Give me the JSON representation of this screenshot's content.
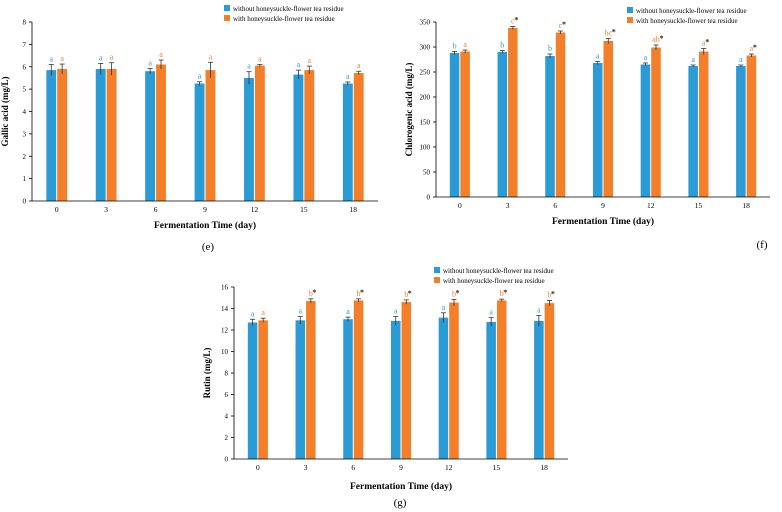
{
  "colors": {
    "without": "#2b9bd6",
    "with": "#f47f2a",
    "axis": "#000000",
    "error": "#333333",
    "star": "#2a2a2a"
  },
  "chart_data": [
    {
      "type": "bar",
      "panel_label": "(e)",
      "ylabel": "Gallic acid (mg/L)",
      "xlabel": "Fermentation Time (day)",
      "categories": [
        "0",
        "3",
        "6",
        "9",
        "12",
        "15",
        "18"
      ],
      "ylim": [
        0,
        8
      ],
      "yticks": [
        "0",
        "1",
        "2",
        "3",
        "4",
        "5",
        "6",
        "7",
        "8"
      ],
      "legend": [
        "without honeysuckle-flower tea residue",
        "with honeysuckle-flower tea residue"
      ],
      "series": [
        {
          "name": "without honeysuckle-flower tea residue",
          "values": [
            5.85,
            5.9,
            5.8,
            5.25,
            5.5,
            5.65,
            5.25
          ],
          "errors": [
            0.25,
            0.25,
            0.12,
            0.08,
            0.28,
            0.2,
            0.07
          ],
          "labels": [
            "a",
            "a",
            "a",
            "a",
            "a",
            "a",
            "a"
          ],
          "stars": [
            false,
            false,
            false,
            false,
            false,
            false,
            false
          ]
        },
        {
          "name": "with honeysuckle-flower tea residue",
          "values": [
            5.9,
            5.9,
            6.1,
            5.85,
            6.05,
            5.85,
            5.72
          ],
          "errors": [
            0.22,
            0.28,
            0.2,
            0.35,
            0.05,
            0.18,
            0.08
          ],
          "labels": [
            "a",
            "a",
            "a",
            "a",
            "a",
            "a",
            "a"
          ],
          "stars": [
            false,
            false,
            false,
            false,
            false,
            false,
            false
          ]
        }
      ]
    },
    {
      "type": "bar",
      "panel_label": "(f)",
      "ylabel": "Chlorogenic acid (mg/L)",
      "xlabel": "Fermentation Time (day)",
      "categories": [
        "0",
        "3",
        "6",
        "9",
        "12",
        "15",
        "18"
      ],
      "ylim": [
        0,
        350
      ],
      "yticks": [
        "0",
        "50",
        "100",
        "150",
        "200",
        "250",
        "300",
        "350"
      ],
      "legend": [
        "without honeysuckle-flower tea residue",
        "with honeysuckle-flower tea residue"
      ],
      "series": [
        {
          "name": "without honeysuckle-flower tea residue",
          "values": [
            288,
            290,
            282,
            268,
            265,
            262,
            262
          ],
          "errors": [
            3,
            3,
            4,
            3,
            3,
            2,
            2
          ],
          "labels": [
            "b",
            "b",
            "b",
            "a",
            "a",
            "a",
            "a"
          ],
          "stars": [
            false,
            false,
            false,
            false,
            false,
            false,
            false
          ]
        },
        {
          "name": "with honeysuckle-flower tea residue",
          "values": [
            291,
            338,
            329,
            312,
            299,
            291,
            283
          ],
          "errors": [
            3,
            3,
            3,
            5,
            5,
            6,
            3
          ],
          "labels": [
            "a",
            "c",
            "c",
            "bc",
            "ab",
            "a",
            "a"
          ],
          "stars": [
            false,
            true,
            true,
            true,
            true,
            true,
            true
          ]
        }
      ]
    },
    {
      "type": "bar",
      "panel_label": "(g)",
      "ylabel": "Rutin (mg/L)",
      "xlabel": "Fermentation Time (day)",
      "categories": [
        "0",
        "3",
        "6",
        "9",
        "12",
        "15",
        "18"
      ],
      "ylim": [
        0,
        16
      ],
      "yticks": [
        "0",
        "2",
        "4",
        "6",
        "8",
        "10",
        "12",
        "14",
        "16"
      ],
      "legend": [
        "without honeysuckle-flower tea residue",
        "with honeysuckle-flower tea residue"
      ],
      "series": [
        {
          "name": "without honeysuckle-flower tea residue",
          "values": [
            12.7,
            12.9,
            13.0,
            12.85,
            13.15,
            12.75,
            12.85
          ],
          "errors": [
            0.3,
            0.35,
            0.2,
            0.4,
            0.45,
            0.4,
            0.5
          ],
          "labels": [
            "a",
            "a",
            "a",
            "a",
            "a",
            "a",
            "a"
          ],
          "stars": [
            false,
            false,
            false,
            false,
            false,
            false,
            false
          ]
        },
        {
          "name": "with honeysuckle-flower tea residue",
          "values": [
            12.9,
            14.7,
            14.75,
            14.6,
            14.55,
            14.75,
            14.5
          ],
          "errors": [
            0.2,
            0.2,
            0.15,
            0.2,
            0.3,
            0.12,
            0.25
          ],
          "labels": [
            "a",
            "b",
            "b",
            "b",
            "b",
            "b",
            "b"
          ],
          "stars": [
            false,
            true,
            true,
            true,
            true,
            true,
            true
          ]
        }
      ]
    }
  ]
}
